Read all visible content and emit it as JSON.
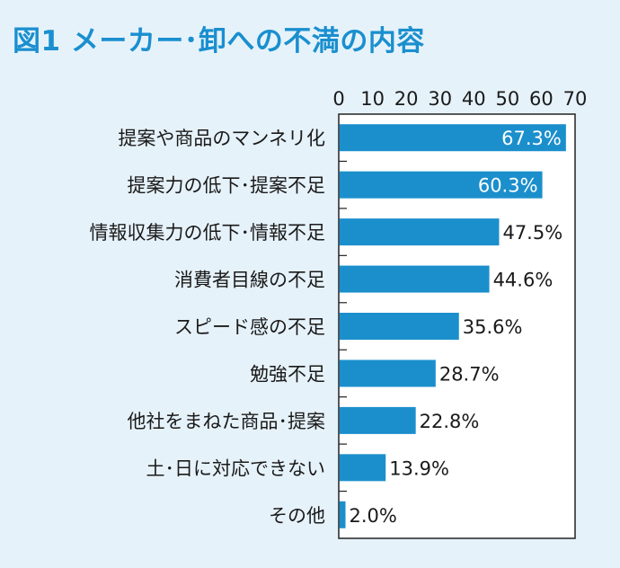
{
  "title": "図1 メーカー･卸への不満の内容",
  "chart_data": {
    "type": "bar",
    "orientation": "horizontal",
    "title": "図1 メーカー･卸への不満の内容",
    "categories": [
      "提案や商品のマンネリ化",
      "提案力の低下･提案不足",
      "情報収集力の低下･情報不足",
      "消費者目線の不足",
      "スピード感の不足",
      "勉強不足",
      "他社をまねた商品･提案",
      "土･日に対応できない",
      "その他"
    ],
    "values": [
      67.3,
      60.3,
      47.5,
      44.6,
      35.6,
      28.7,
      22.8,
      13.9,
      2.0
    ],
    "value_labels": [
      "67.3%",
      "60.3%",
      "47.5%",
      "44.6%",
      "35.6%",
      "28.7%",
      "22.8%",
      "13.9%",
      "2.0%"
    ],
    "xlim": [
      0,
      70
    ],
    "xticks": [
      "0",
      "10",
      "20",
      "30",
      "40",
      "50",
      "60",
      "70"
    ],
    "xlabel": "",
    "ylabel": "",
    "grid": false,
    "colors": {
      "bar": "#1b8fcc",
      "title": "#1a8fcf",
      "background": "#e6f2fa",
      "plot_background": "#ffffff",
      "label_inside": "#ffffff",
      "label_outside": "#1a1a1a"
    }
  }
}
